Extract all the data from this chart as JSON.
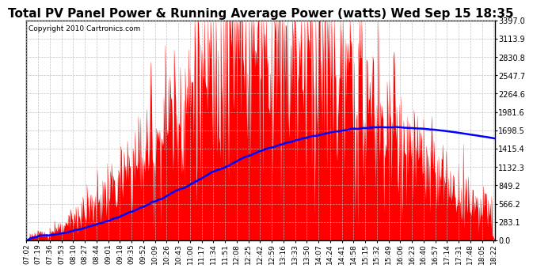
{
  "title": "Total PV Panel Power & Running Average Power (watts) Wed Sep 15 18:35",
  "copyright": "Copyright 2010 Cartronics.com",
  "background_color": "#ffffff",
  "plot_bg_color": "#ffffff",
  "ymin": 0.0,
  "ymax": 3397.0,
  "yticks": [
    0.0,
    283.1,
    566.2,
    849.2,
    1132.3,
    1415.4,
    1698.5,
    1981.6,
    2264.6,
    2547.7,
    2830.8,
    3113.9,
    3397.0
  ],
  "bar_color": "#ff0000",
  "avg_line_color": "#0000ff",
  "grid_color": "#bbbbbb",
  "title_fontsize": 11,
  "tick_fontsize": 6.5
}
